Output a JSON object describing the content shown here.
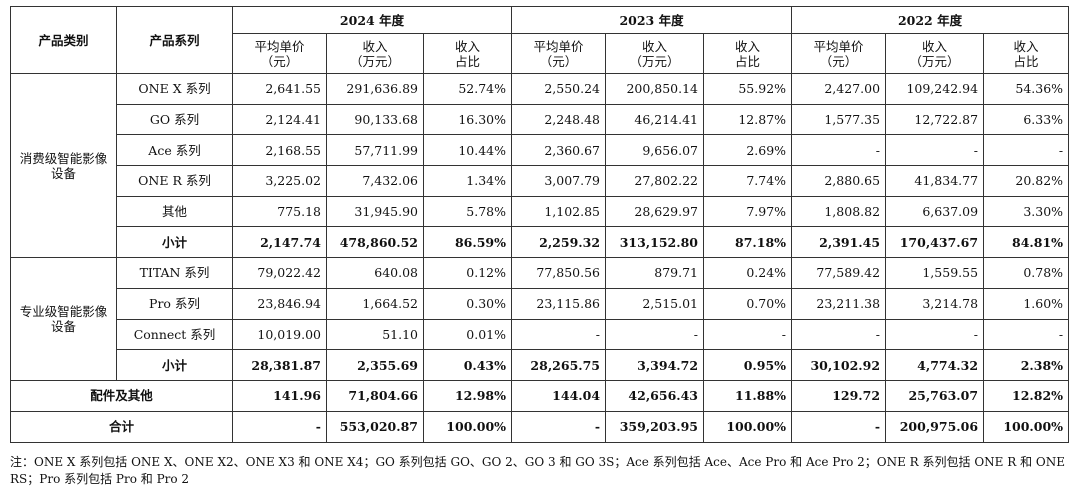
{
  "headers": {
    "category": "产品类别",
    "series": "产品系列",
    "years": [
      "2024 年度",
      "2023 年度",
      "2022 年度"
    ],
    "price": [
      "平均单价",
      "（元）"
    ],
    "revenue": [
      "收入",
      "（万元）"
    ],
    "share": [
      "收入",
      "占比"
    ]
  },
  "groups": [
    {
      "category": "消费级智能影像设备",
      "rows": [
        {
          "series": "ONE X 系列",
          "cells": [
            "2,641.55",
            "291,636.89",
            "52.74%",
            "2,550.24",
            "200,850.14",
            "55.92%",
            "2,427.00",
            "109,242.94",
            "54.36%"
          ]
        },
        {
          "series": "GO 系列",
          "cells": [
            "2,124.41",
            "90,133.68",
            "16.30%",
            "2,248.48",
            "46,214.41",
            "12.87%",
            "1,577.35",
            "12,722.87",
            "6.33%"
          ]
        },
        {
          "series": "Ace 系列",
          "cells": [
            "2,168.55",
            "57,711.99",
            "10.44%",
            "2,360.67",
            "9,656.07",
            "2.69%",
            "-",
            "-",
            "-"
          ]
        },
        {
          "series": "ONE R 系列",
          "cells": [
            "3,225.02",
            "7,432.06",
            "1.34%",
            "3,007.79",
            "27,802.22",
            "7.74%",
            "2,880.65",
            "41,834.77",
            "20.82%"
          ]
        },
        {
          "series": "其他",
          "cells": [
            "775.18",
            "31,945.90",
            "5.78%",
            "1,102.85",
            "28,629.97",
            "7.97%",
            "1,808.82",
            "6,637.09",
            "3.30%"
          ]
        }
      ],
      "subtotal": {
        "series": "小计",
        "cells": [
          "2,147.74",
          "478,860.52",
          "86.59%",
          "2,259.32",
          "313,152.80",
          "87.18%",
          "2,391.45",
          "170,437.67",
          "84.81%"
        ]
      }
    },
    {
      "category": "专业级智能影像设备",
      "rows": [
        {
          "series": "TITAN 系列",
          "cells": [
            "79,022.42",
            "640.08",
            "0.12%",
            "77,850.56",
            "879.71",
            "0.24%",
            "77,589.42",
            "1,559.55",
            "0.78%"
          ]
        },
        {
          "series": "Pro 系列",
          "cells": [
            "23,846.94",
            "1,664.52",
            "0.30%",
            "23,115.86",
            "2,515.01",
            "0.70%",
            "23,211.38",
            "3,214.78",
            "1.60%"
          ]
        },
        {
          "series": "Connect 系列",
          "cells": [
            "10,019.00",
            "51.10",
            "0.01%",
            "-",
            "-",
            "-",
            "-",
            "-",
            "-"
          ]
        }
      ],
      "subtotal": {
        "series": "小计",
        "cells": [
          "28,381.87",
          "2,355.69",
          "0.43%",
          "28,265.75",
          "3,394.72",
          "0.95%",
          "30,102.92",
          "4,774.32",
          "2.38%"
        ]
      }
    }
  ],
  "accessories": {
    "label": "配件及其他",
    "cells": [
      "141.96",
      "71,804.66",
      "12.98%",
      "144.04",
      "42,656.43",
      "11.88%",
      "129.72",
      "25,763.07",
      "12.82%"
    ]
  },
  "total": {
    "label": "合计",
    "cells": [
      "-",
      "553,020.87",
      "100.00%",
      "-",
      "359,203.95",
      "100.00%",
      "-",
      "200,975.06",
      "100.00%"
    ]
  },
  "note": "注：ONE X 系列包括 ONE X、ONE X2、ONE X3 和 ONE X4；GO 系列包括 GO、GO 2、GO 3 和 GO 3S；Ace 系列包括 Ace、Ace Pro 和 Ace Pro 2；ONE R 系列包括 ONE R 和 ONE RS；Pro 系列包括 Pro 和 Pro 2"
}
